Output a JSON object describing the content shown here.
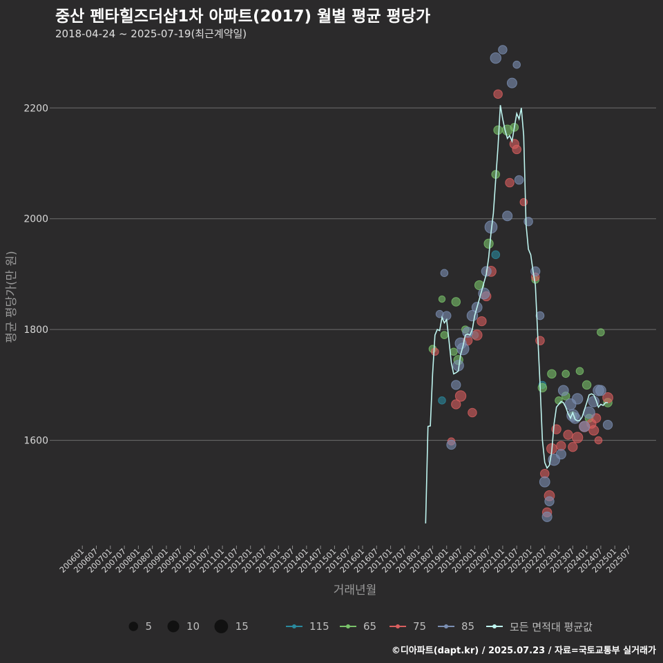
{
  "title": "중산 펜타힐즈더샵1차 아파트(2017) 월별 평균 평당가",
  "subtitle": "2018-04-24 ~ 2025-07-19(최근계약일)",
  "credit": "©디아파트(dapt.kr) / 2025.07.23 / 자료=국토교통부 실거래가",
  "colors": {
    "115": "#2a8a9e",
    "65": "#79c36a",
    "75": "#d95f5f",
    "85": "#7b8fb3",
    "avg": "#bff5f0"
  },
  "chart_data": {
    "type": "scatter",
    "title": "중산 펜타힐즈더샵1차 아파트(2017) 월별 평균 평당가",
    "xlabel": "거래년월",
    "ylabel": "평균 평당가(만 원)",
    "ylim": [
      1410,
      2320
    ],
    "y_ticks": [
      1600,
      1800,
      2000,
      2200
    ],
    "x_ticks": [
      "200601",
      "200607",
      "200701",
      "200707",
      "200801",
      "200807",
      "200901",
      "200907",
      "201001",
      "201007",
      "201101",
      "201107",
      "201201",
      "201207",
      "201301",
      "201307",
      "201401",
      "201407",
      "201501",
      "201507",
      "201601",
      "201607",
      "201701",
      "201707",
      "201801",
      "201807",
      "201901",
      "201907",
      "202001",
      "202007",
      "202101",
      "202107",
      "202201",
      "202207",
      "202301",
      "202307",
      "202401",
      "202407",
      "202501",
      "202507"
    ],
    "size_legend": [
      {
        "label": "5",
        "value": 5
      },
      {
        "label": "10",
        "value": 10
      },
      {
        "label": "15",
        "value": 15
      }
    ],
    "legend": [
      {
        "name": "115",
        "color_key": "115"
      },
      {
        "name": "65",
        "color_key": "65"
      },
      {
        "name": "75",
        "color_key": "75"
      },
      {
        "name": "85",
        "color_key": "85"
      },
      {
        "name": "모든 면적대 평균값",
        "color_key": "avg"
      }
    ],
    "average_line": [
      [
        "201804",
        1450
      ],
      [
        "201805",
        1625
      ],
      [
        "201806",
        1626
      ],
      [
        "201807",
        1720
      ],
      [
        "201808",
        1790
      ],
      [
        "201809",
        1800
      ],
      [
        "201810",
        1798
      ],
      [
        "201811",
        1822
      ],
      [
        "201812",
        1812
      ],
      [
        "201901",
        1818
      ],
      [
        "201902",
        1780
      ],
      [
        "201903",
        1740
      ],
      [
        "201904",
        1720
      ],
      [
        "201905",
        1722
      ],
      [
        "201906",
        1725
      ],
      [
        "201907",
        1755
      ],
      [
        "201908",
        1770
      ],
      [
        "201909",
        1790
      ],
      [
        "201910",
        1792
      ],
      [
        "201911",
        1790
      ],
      [
        "201912",
        1800
      ],
      [
        "202001",
        1825
      ],
      [
        "202002",
        1840
      ],
      [
        "202003",
        1855
      ],
      [
        "202004",
        1870
      ],
      [
        "202005",
        1885
      ],
      [
        "202006",
        1900
      ],
      [
        "202007",
        1930
      ],
      [
        "202008",
        1975
      ],
      [
        "202009",
        2010
      ],
      [
        "202010",
        2070
      ],
      [
        "202011",
        2130
      ],
      [
        "202012",
        2205
      ],
      [
        "202101",
        2180
      ],
      [
        "202102",
        2160
      ],
      [
        "202103",
        2145
      ],
      [
        "202104",
        2150
      ],
      [
        "202105",
        2140
      ],
      [
        "202106",
        2165
      ],
      [
        "202107",
        2190
      ],
      [
        "202108",
        2180
      ],
      [
        "202109",
        2200
      ],
      [
        "202110",
        2150
      ],
      [
        "202111",
        1990
      ],
      [
        "202112",
        1945
      ],
      [
        "202201",
        1935
      ],
      [
        "202202",
        1905
      ],
      [
        "202203",
        1880
      ],
      [
        "202204",
        1790
      ],
      [
        "202205",
        1700
      ],
      [
        "202206",
        1600
      ],
      [
        "202207",
        1560
      ],
      [
        "202208",
        1550
      ],
      [
        "202209",
        1555
      ],
      [
        "202210",
        1580
      ],
      [
        "202211",
        1630
      ],
      [
        "202212",
        1660
      ],
      [
        "202301",
        1665
      ],
      [
        "202302",
        1670
      ],
      [
        "202303",
        1668
      ],
      [
        "202304",
        1660
      ],
      [
        "202305",
        1648
      ],
      [
        "202306",
        1640
      ],
      [
        "202307",
        1650
      ],
      [
        "202308",
        1638
      ],
      [
        "202309",
        1635
      ],
      [
        "202310",
        1636
      ],
      [
        "202311",
        1642
      ],
      [
        "202312",
        1655
      ],
      [
        "202401",
        1668
      ],
      [
        "202402",
        1682
      ],
      [
        "202403",
        1684
      ],
      [
        "202404",
        1682
      ],
      [
        "202405",
        1672
      ],
      [
        "202406",
        1660
      ],
      [
        "202407",
        1665
      ],
      [
        "202408",
        1663
      ],
      [
        "202409",
        1668
      ],
      [
        "202410",
        1668
      ]
    ],
    "series": [
      {
        "name": "115",
        "points": [
          [
            "201811",
            1672,
            3
          ],
          [
            "202001",
            1790,
            3
          ],
          [
            "202010",
            1935,
            4
          ],
          [
            "202206",
            1700,
            3
          ]
        ]
      },
      {
        "name": "65",
        "points": [
          [
            "201807",
            1765,
            3
          ],
          [
            "201811",
            1855,
            2
          ],
          [
            "201812",
            1790,
            3
          ],
          [
            "201904",
            1760,
            3
          ],
          [
            "201905",
            1850,
            5
          ],
          [
            "201906",
            1745,
            6
          ],
          [
            "201909",
            1800,
            3
          ],
          [
            "202003",
            1880,
            6
          ],
          [
            "202007",
            1955,
            6
          ],
          [
            "202010",
            2080,
            4
          ],
          [
            "202011",
            2160,
            5
          ],
          [
            "202103",
            2160,
            8
          ],
          [
            "202106",
            2165,
            4
          ],
          [
            "202203",
            1890,
            3
          ],
          [
            "202206",
            1695,
            5
          ],
          [
            "202210",
            1720,
            5
          ],
          [
            "202301",
            1672,
            3
          ],
          [
            "202304",
            1680,
            4
          ],
          [
            "202307",
            1645,
            3
          ],
          [
            "202310",
            1725,
            3
          ],
          [
            "202401",
            1700,
            5
          ],
          [
            "202407",
            1795,
            3
          ],
          [
            "202410",
            1668,
            5
          ],
          [
            "202304",
            1720,
            3
          ],
          [
            "202402",
            1640,
            4
          ]
        ]
      },
      {
        "name": "75",
        "points": [
          [
            "201808",
            1760,
            3
          ],
          [
            "201903",
            1598,
            3
          ],
          [
            "201905",
            1665,
            6
          ],
          [
            "201907",
            1680,
            9
          ],
          [
            "201910",
            1780,
            6
          ],
          [
            "201912",
            1650,
            5
          ],
          [
            "202002",
            1790,
            8
          ],
          [
            "202004",
            1815,
            6
          ],
          [
            "202006",
            1860,
            6
          ],
          [
            "202008",
            1905,
            8
          ],
          [
            "202011",
            2225,
            5
          ],
          [
            "202104",
            2065,
            5
          ],
          [
            "202106",
            2135,
            6
          ],
          [
            "202107",
            2125,
            5
          ],
          [
            "202110",
            2030,
            3
          ],
          [
            "202203",
            1895,
            4
          ],
          [
            "202205",
            1780,
            5
          ],
          [
            "202207",
            1540,
            5
          ],
          [
            "202208",
            1470,
            6
          ],
          [
            "202209",
            1500,
            8
          ],
          [
            "202210",
            1585,
            8
          ],
          [
            "202212",
            1620,
            6
          ],
          [
            "202302",
            1590,
            6
          ],
          [
            "202305",
            1610,
            6
          ],
          [
            "202307",
            1588,
            6
          ],
          [
            "202309",
            1605,
            9
          ],
          [
            "202312",
            1625,
            9
          ],
          [
            "202403",
            1630,
            6
          ],
          [
            "202405",
            1640,
            6
          ],
          [
            "202406",
            1600,
            3
          ],
          [
            "202410",
            1677,
            8
          ],
          [
            "202404",
            1618,
            7
          ]
        ]
      },
      {
        "name": "85",
        "points": [
          [
            "201810",
            1828,
            3
          ],
          [
            "201812",
            1902,
            3
          ],
          [
            "201901",
            1825,
            5
          ],
          [
            "201903",
            1592,
            6
          ],
          [
            "201905",
            1700,
            6
          ],
          [
            "201906",
            1735,
            9
          ],
          [
            "201907",
            1775,
            10
          ],
          [
            "201908",
            1765,
            12
          ],
          [
            "201910",
            1795,
            8
          ],
          [
            "201912",
            1825,
            9
          ],
          [
            "202002",
            1840,
            8
          ],
          [
            "202005",
            1865,
            10
          ],
          [
            "202006",
            1905,
            7
          ],
          [
            "202008",
            1985,
            13
          ],
          [
            "202010",
            2290,
            9
          ],
          [
            "202101",
            2305,
            5
          ],
          [
            "202103",
            2005,
            7
          ],
          [
            "202105",
            2245,
            7
          ],
          [
            "202107",
            2278,
            3
          ],
          [
            "202108",
            2070,
            5
          ],
          [
            "202112",
            1995,
            5
          ],
          [
            "202203",
            1905,
            6
          ],
          [
            "202205",
            1825,
            4
          ],
          [
            "202207",
            1525,
            8
          ],
          [
            "202208",
            1462,
            7
          ],
          [
            "202209",
            1490,
            6
          ],
          [
            "202211",
            1565,
            11
          ],
          [
            "202302",
            1575,
            7
          ],
          [
            "202303",
            1690,
            8
          ],
          [
            "202306",
            1665,
            10
          ],
          [
            "202307",
            1645,
            12
          ],
          [
            "202308",
            1640,
            9
          ],
          [
            "202402",
            1650,
            11
          ],
          [
            "202404",
            1670,
            9
          ],
          [
            "202406",
            1690,
            9
          ],
          [
            "202407",
            1690,
            8
          ],
          [
            "202410",
            1628,
            6
          ],
          [
            "202309",
            1675,
            9
          ],
          [
            "202312",
            1625,
            8
          ]
        ]
      }
    ]
  }
}
